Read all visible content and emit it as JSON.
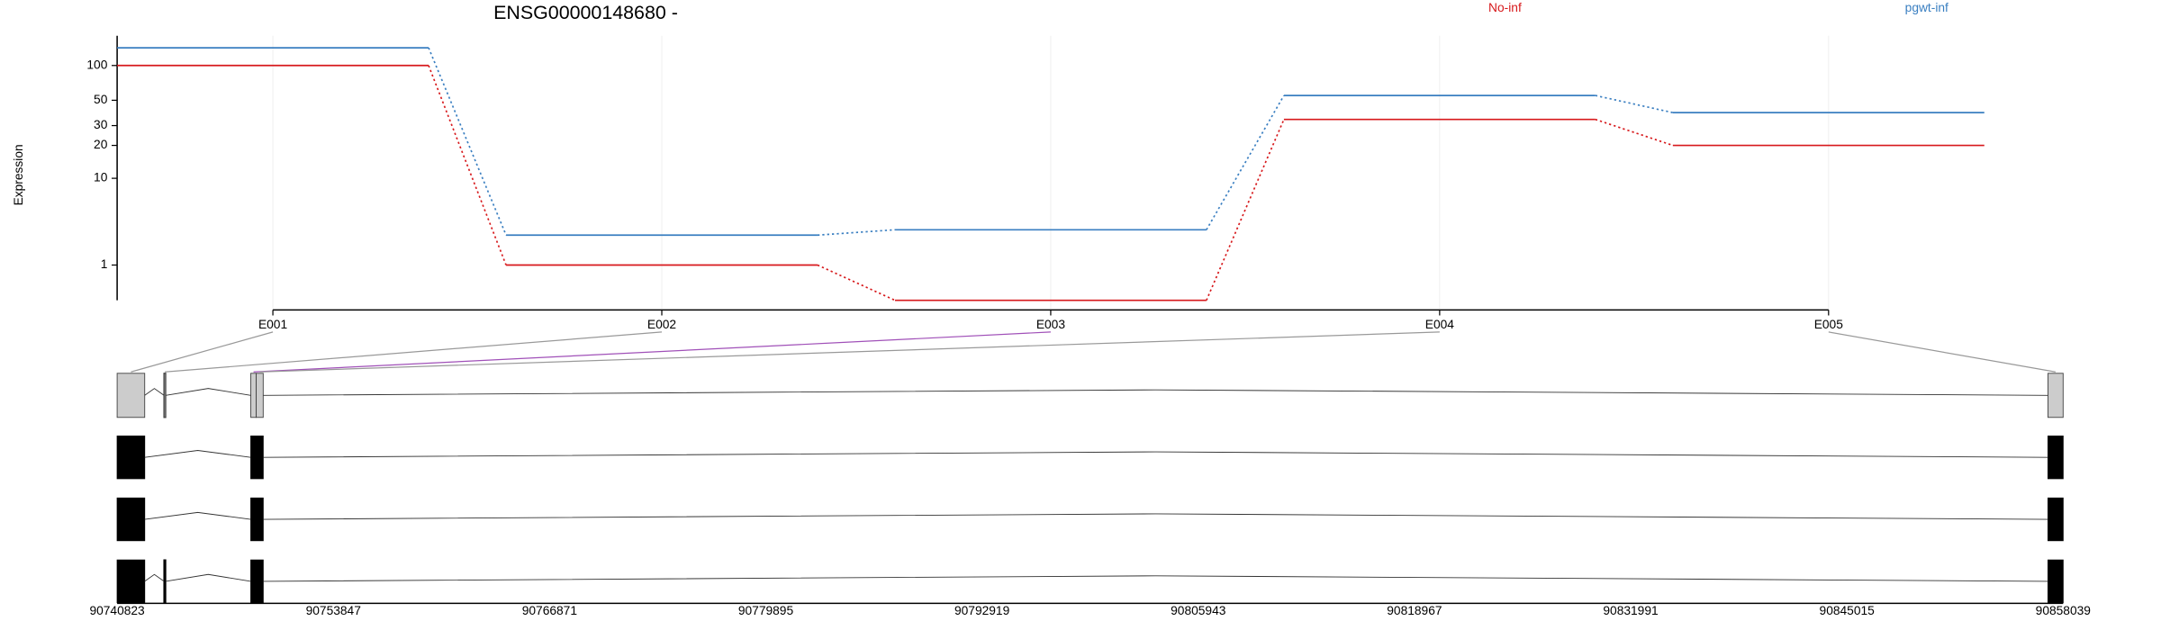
{
  "chart_data": {
    "type": "line",
    "title": "ENSG00000148680 -",
    "y_label": "Expression",
    "categories": [
      "E001",
      "E002",
      "E003",
      "E004",
      "E005"
    ],
    "yscale": "log1p",
    "ylim": [
      0,
      180
    ],
    "yticks": [
      1,
      10,
      20,
      30,
      50,
      100
    ],
    "grid": true,
    "series": [
      {
        "name": "No-inf",
        "color": "#d7191c",
        "values": [
          100,
          1,
          0,
          34,
          20
        ]
      },
      {
        "name": "pgwt-inf",
        "color": "#3a7fc1",
        "values": [
          142,
          2.6,
          3,
          55,
          39
        ]
      }
    ],
    "gene_model": {
      "xlim": [
        90740823,
        90858039
      ],
      "xticks": [
        90740823,
        90753847,
        90766871,
        90779895,
        90792919,
        90805943,
        90818967,
        90831991,
        90845015,
        90858039
      ],
      "bins": [
        [
          90740823,
          90742483
        ],
        [
          90743645,
          90743745
        ],
        [
          90748874,
          90749200
        ],
        [
          90749200,
          90749621
        ],
        [
          90857126,
          90858039
        ]
      ],
      "bin_link_colors": [
        "#999999",
        "#999999",
        "#a050b8",
        "#999999",
        "#999999"
      ],
      "transcripts": [
        [
          [
            90740823,
            90742483
          ],
          [
            90748874,
            90749621
          ],
          [
            90857126,
            90858039
          ]
        ],
        [
          [
            90740823,
            90742483
          ],
          [
            90748874,
            90749621
          ],
          [
            90857126,
            90858039
          ]
        ],
        [
          [
            90740823,
            90742483
          ],
          [
            90743645,
            90743745
          ],
          [
            90748874,
            90749621
          ],
          [
            90857126,
            90858039
          ]
        ]
      ]
    }
  }
}
